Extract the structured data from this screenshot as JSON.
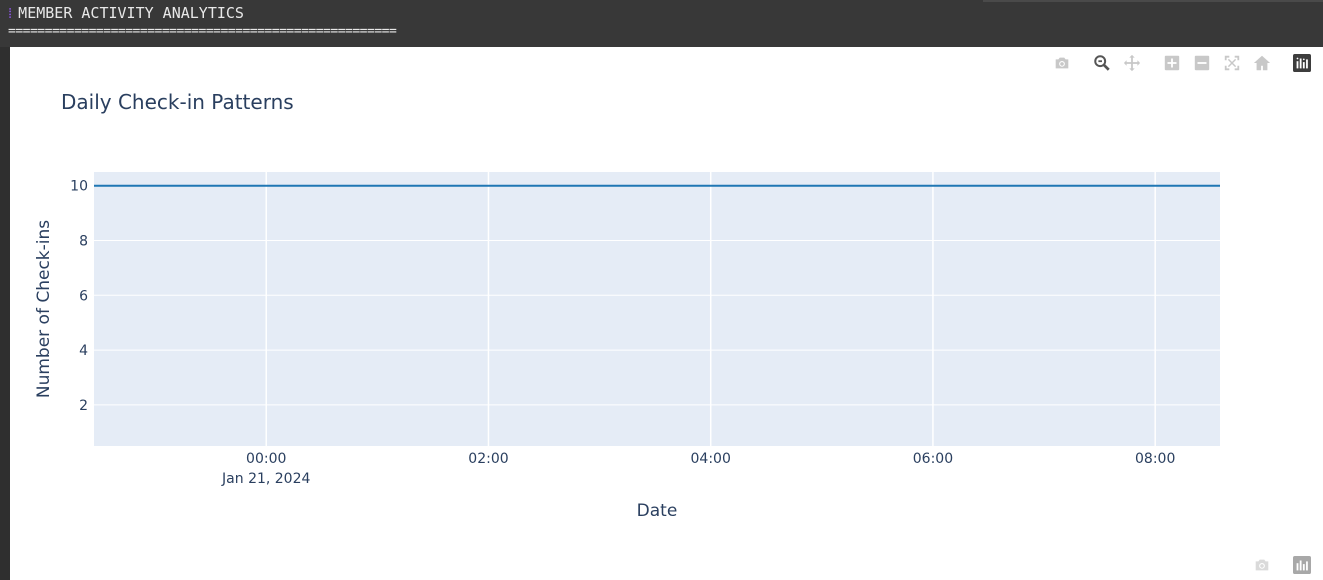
{
  "console": {
    "title": "MEMBER ACTIVITY ANALYTICS",
    "divider": "====================================================="
  },
  "modebar": {
    "buttons": [
      "camera-icon",
      "zoom-icon",
      "pan-icon",
      "zoom-in-icon",
      "zoom-out-icon",
      "autoscale-icon",
      "reset-axes-icon",
      "plotly-logo-icon"
    ]
  },
  "colors": {
    "plot_bg": "#e5ecf6",
    "line": "#1f77b4",
    "grid": "#ffffff",
    "text": "#2a3f5f"
  },
  "chart_data": {
    "type": "line",
    "title": "Daily Check-in Patterns",
    "xlabel": "Date",
    "ylabel": "Number of Check-ins",
    "x_range": [
      "2024-01-20T22:27",
      "2024-01-21T08:35"
    ],
    "ylim": [
      0.5,
      10.5
    ],
    "x_ticks": [
      {
        "value": "2024-01-21T00:00",
        "label": "00:00",
        "sublabel": "Jan 21, 2024"
      },
      {
        "value": "2024-01-21T02:00",
        "label": "02:00",
        "sublabel": ""
      },
      {
        "value": "2024-01-21T04:00",
        "label": "04:00",
        "sublabel": ""
      },
      {
        "value": "2024-01-21T06:00",
        "label": "06:00",
        "sublabel": ""
      },
      {
        "value": "2024-01-21T08:00",
        "label": "08:00",
        "sublabel": ""
      }
    ],
    "y_ticks": [
      2,
      4,
      6,
      8,
      10
    ],
    "grid": true,
    "series": [
      {
        "x": [
          "2024-01-20T22:27",
          "2024-01-21T08:35"
        ],
        "y": [
          10,
          10
        ]
      }
    ]
  }
}
